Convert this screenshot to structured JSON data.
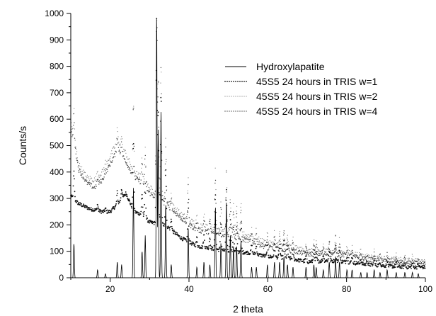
{
  "chart_data": {
    "type": "line",
    "title": "",
    "xlabel": "2 theta",
    "ylabel": "Counts/s",
    "xlim": [
      10,
      100
    ],
    "ylim": [
      0,
      1000
    ],
    "x_ticks": [
      20,
      40,
      60,
      80,
      100
    ],
    "y_ticks": [
      0,
      100,
      200,
      300,
      400,
      500,
      600,
      700,
      800,
      900,
      1000
    ],
    "grid": false,
    "legend_position": "top-right",
    "series": [
      {
        "name": "Hydroxylapatite",
        "style": "solid",
        "color": "#000000",
        "peaks": [
          {
            "x": 10.8,
            "y": 130
          },
          {
            "x": 16.8,
            "y": 30
          },
          {
            "x": 18.8,
            "y": 15
          },
          {
            "x": 21.8,
            "y": 60
          },
          {
            "x": 22.9,
            "y": 50
          },
          {
            "x": 25.9,
            "y": 340
          },
          {
            "x": 28.1,
            "y": 100
          },
          {
            "x": 28.9,
            "y": 160
          },
          {
            "x": 31.8,
            "y": 1000
          },
          {
            "x": 32.2,
            "y": 560
          },
          {
            "x": 32.9,
            "y": 640
          },
          {
            "x": 34.1,
            "y": 280
          },
          {
            "x": 35.5,
            "y": 50
          },
          {
            "x": 39.8,
            "y": 190
          },
          {
            "x": 42.0,
            "y": 40
          },
          {
            "x": 43.8,
            "y": 60
          },
          {
            "x": 45.3,
            "y": 50
          },
          {
            "x": 46.7,
            "y": 270
          },
          {
            "x": 48.1,
            "y": 130
          },
          {
            "x": 49.5,
            "y": 290
          },
          {
            "x": 50.5,
            "y": 160
          },
          {
            "x": 51.3,
            "y": 120
          },
          {
            "x": 52.1,
            "y": 120
          },
          {
            "x": 53.2,
            "y": 140
          },
          {
            "x": 55.9,
            "y": 40
          },
          {
            "x": 57.1,
            "y": 40
          },
          {
            "x": 59.9,
            "y": 50
          },
          {
            "x": 61.7,
            "y": 60
          },
          {
            "x": 63.0,
            "y": 60
          },
          {
            "x": 64.1,
            "y": 80
          },
          {
            "x": 65.0,
            "y": 50
          },
          {
            "x": 66.4,
            "y": 40
          },
          {
            "x": 69.7,
            "y": 40
          },
          {
            "x": 71.7,
            "y": 50
          },
          {
            "x": 72.3,
            "y": 40
          },
          {
            "x": 74.1,
            "y": 30
          },
          {
            "x": 75.6,
            "y": 60
          },
          {
            "x": 77.2,
            "y": 80
          },
          {
            "x": 78.2,
            "y": 60
          },
          {
            "x": 80.1,
            "y": 30
          },
          {
            "x": 81.4,
            "y": 30
          },
          {
            "x": 83.6,
            "y": 20
          },
          {
            "x": 85.2,
            "y": 20
          },
          {
            "x": 87.0,
            "y": 30
          },
          {
            "x": 88.5,
            "y": 20
          },
          {
            "x": 90.3,
            "y": 30
          },
          {
            "x": 92.6,
            "y": 20
          },
          {
            "x": 94.8,
            "y": 20
          },
          {
            "x": 96.7,
            "y": 20
          },
          {
            "x": 98.2,
            "y": 15
          }
        ]
      },
      {
        "name": "45S5 24 hours in TRIS w=1",
        "style": "dense-dots",
        "color": "#000000",
        "baseline": [
          [
            10,
            310
          ],
          [
            12,
            280
          ],
          [
            15,
            260
          ],
          [
            18,
            250
          ],
          [
            20,
            250
          ],
          [
            22,
            280
          ],
          [
            24,
            320
          ],
          [
            26,
            250
          ],
          [
            28,
            240
          ],
          [
            30,
            210
          ],
          [
            34,
            200
          ],
          [
            38,
            150
          ],
          [
            42,
            120
          ],
          [
            46,
            110
          ],
          [
            50,
            100
          ],
          [
            55,
            95
          ],
          [
            60,
            80
          ],
          [
            65,
            75
          ],
          [
            70,
            60
          ],
          [
            75,
            65
          ],
          [
            80,
            60
          ],
          [
            85,
            50
          ],
          [
            90,
            45
          ],
          [
            95,
            40
          ],
          [
            100,
            40
          ]
        ]
      },
      {
        "name": "45S5 24 hours in TRIS w=2",
        "style": "sparse-dots",
        "color": "#444444",
        "baseline": [
          [
            10,
            590
          ],
          [
            11,
            520
          ],
          [
            12,
            430
          ],
          [
            14,
            380
          ],
          [
            16,
            370
          ],
          [
            18,
            400
          ],
          [
            20,
            460
          ],
          [
            22,
            520
          ],
          [
            24,
            470
          ],
          [
            26,
            400
          ],
          [
            28,
            380
          ],
          [
            30,
            340
          ],
          [
            34,
            300
          ],
          [
            38,
            240
          ],
          [
            42,
            200
          ],
          [
            46,
            190
          ],
          [
            50,
            180
          ],
          [
            55,
            160
          ],
          [
            60,
            130
          ],
          [
            65,
            120
          ],
          [
            70,
            100
          ],
          [
            75,
            100
          ],
          [
            80,
            95
          ],
          [
            85,
            80
          ],
          [
            90,
            70
          ],
          [
            95,
            65
          ],
          [
            100,
            60
          ]
        ]
      },
      {
        "name": "45S5 24 hours in TRIS w=4",
        "style": "medium-dots",
        "color": "#222222",
        "baseline": [
          [
            10,
            560
          ],
          [
            11,
            500
          ],
          [
            12,
            410
          ],
          [
            14,
            360
          ],
          [
            16,
            340
          ],
          [
            18,
            370
          ],
          [
            20,
            430
          ],
          [
            22,
            490
          ],
          [
            24,
            440
          ],
          [
            26,
            380
          ],
          [
            28,
            360
          ],
          [
            30,
            320
          ],
          [
            34,
            280
          ],
          [
            38,
            225
          ],
          [
            42,
            180
          ],
          [
            46,
            170
          ],
          [
            50,
            160
          ],
          [
            55,
            140
          ],
          [
            60,
            115
          ],
          [
            65,
            105
          ],
          [
            70,
            90
          ],
          [
            75,
            90
          ],
          [
            80,
            85
          ],
          [
            85,
            70
          ],
          [
            90,
            65
          ],
          [
            95,
            55
          ],
          [
            100,
            55
          ]
        ]
      }
    ]
  }
}
